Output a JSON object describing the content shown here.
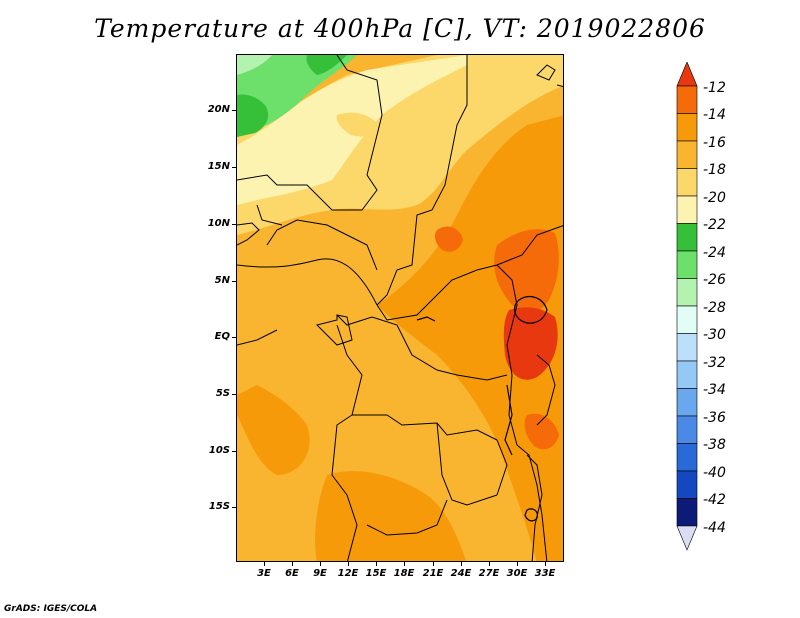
{
  "title": "Temperature at 400hPa [C], VT: 2019022806",
  "credit": "GrADS: IGES/COLA",
  "lat_labels": [
    "20N",
    "15N",
    "10N",
    "5N",
    "EQ",
    "5S",
    "10S",
    "15S"
  ],
  "lon_labels": [
    "3E",
    "6E",
    "9E",
    "12E",
    "15E",
    "18E",
    "21E",
    "24E",
    "27E",
    "30E",
    "33E"
  ],
  "colorbar": {
    "labels": [
      "-12",
      "-14",
      "-16",
      "-18",
      "-20",
      "-22",
      "-24",
      "-26",
      "-28",
      "-30",
      "-32",
      "-34",
      "-36",
      "-38",
      "-40",
      "-42",
      "-44"
    ],
    "colors": [
      "#e8380f",
      "#f56b0a",
      "#f79a0a",
      "#f9b530",
      "#fcd86a",
      "#fdf3b0",
      "#36c03a",
      "#6ce06a",
      "#b4f2b0",
      "#e2fcf6",
      "#bde0fa",
      "#94c8f5",
      "#6aa8ee",
      "#4a8ae6",
      "#2a6ad8",
      "#1448c0",
      "#0c1a78",
      "#dcdcf5"
    ]
  },
  "map": {
    "field_colors": {
      "t_16": "#f9b530",
      "t_14": "#f79a0a",
      "t_12": "#f56b0a",
      "t_10": "#e8380f",
      "t_18": "#fcd86a",
      "t_20": "#fdf3b0",
      "t_22": "#36c03a",
      "t_24": "#6ce06a",
      "t_26": "#b4f2b0"
    }
  }
}
